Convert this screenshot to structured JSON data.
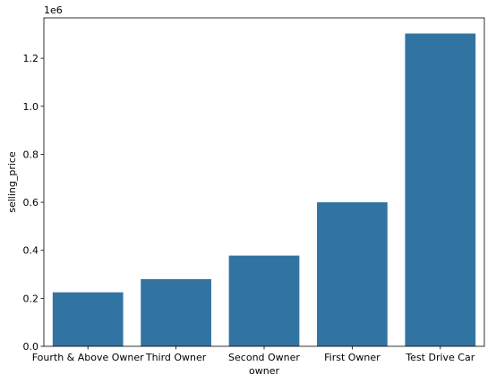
{
  "chart_data": {
    "type": "bar",
    "categories": [
      "Fourth & Above Owner",
      "Third Owner",
      "Second Owner",
      "First Owner",
      "Test Drive Car"
    ],
    "values": [
      225000,
      280000,
      378000,
      600000,
      1303000
    ],
    "xlabel": "owner",
    "ylabel": "selling_price",
    "ylim": [
      0,
      1368150
    ],
    "yticks": [
      0.0,
      0.2,
      0.4,
      0.6,
      0.8,
      1.0,
      1.2
    ],
    "ytick_labels": [
      "0.0",
      "0.2",
      "0.4",
      "0.6",
      "0.8",
      "1.0",
      "1.2"
    ],
    "y_offset_label": "1e6",
    "bar_color": "#3274a1",
    "grid": false,
    "legend": "none"
  }
}
